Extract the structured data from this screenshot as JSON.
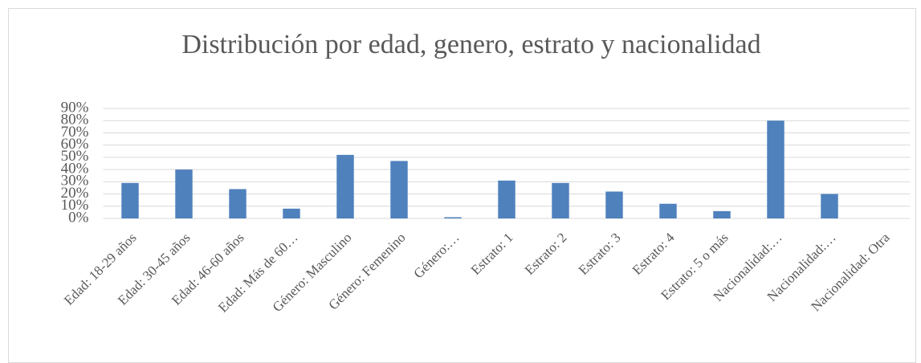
{
  "chart_data": {
    "type": "bar",
    "title": "Distribución por edad, genero, estrato y nacionalidad",
    "categories": [
      "Edad: 18-29 años",
      "Edad: 30-45 años",
      "Edad: 46-60 años",
      "Edad: Más de 60…",
      "Género: Masculino",
      "Género: Femenino",
      "Género:…",
      "Estrato: 1",
      "Estrato: 2",
      "Estrato: 3",
      "Estrato: 4",
      "Estrato: 5 o más",
      "Nacionalidad:…",
      "Nacionalidad:…",
      "Nacionalidad: Otra"
    ],
    "values": [
      29,
      40,
      24,
      8,
      52,
      47,
      1,
      31,
      29,
      22,
      12,
      6,
      80,
      20,
      0
    ],
    "color": "#4f81bd",
    "ylim": [
      0,
      90
    ],
    "yticks": [
      {
        "value": 0,
        "label": "0%"
      },
      {
        "value": 10,
        "label": "10%"
      },
      {
        "value": 20,
        "label": "20%"
      },
      {
        "value": 30,
        "label": "30%"
      },
      {
        "value": 40,
        "label": "40%"
      },
      {
        "value": 50,
        "label": "50%"
      },
      {
        "value": 60,
        "label": "60%"
      },
      {
        "value": 70,
        "label": "70%"
      },
      {
        "value": 80,
        "label": "80%"
      },
      {
        "value": 90,
        "label": "90%"
      }
    ],
    "grid": true
  }
}
